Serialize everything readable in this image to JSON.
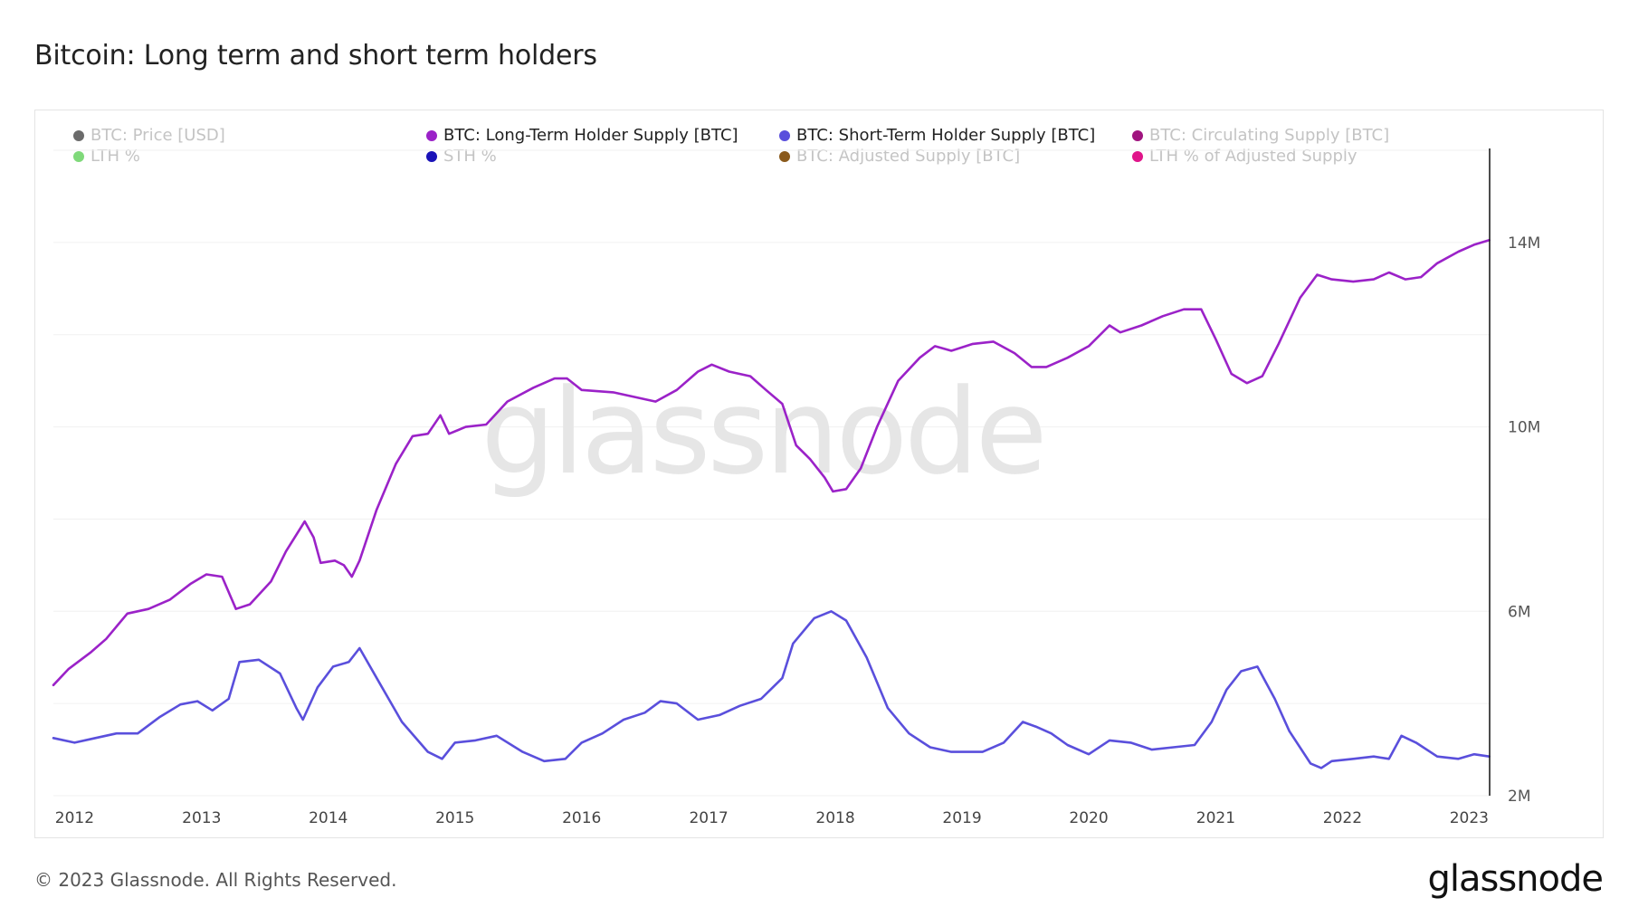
{
  "page": {
    "title": "Bitcoin: Long term and short term holders",
    "copyright": "© 2023 Glassnode. All Rights Reserved.",
    "logo_text": "glassnode",
    "watermark": "glassnode"
  },
  "legend": [
    {
      "label": "BTC: Price [USD]",
      "color": "#6b6b6b",
      "active": false
    },
    {
      "label": "BTC: Long-Term Holder Supply [BTC]",
      "color": "#9b22c8",
      "active": true
    },
    {
      "label": "BTC: Short-Term Holder Supply [BTC]",
      "color": "#5a4fdc",
      "active": true
    },
    {
      "label": "BTC: Circulating Supply [BTC]",
      "color": "#a0147f",
      "active": false
    },
    {
      "label": "LTH %",
      "color": "#7fd97a",
      "active": false
    },
    {
      "label": "STH %",
      "color": "#1a12b8",
      "active": false
    },
    {
      "label": "BTC: Adjusted Supply [BTC]",
      "color": "#8a5a1c",
      "active": false
    },
    {
      "label": "LTH % of Adjusted Supply",
      "color": "#e0158a",
      "active": false
    }
  ],
  "chart_data": {
    "type": "line",
    "title": "Bitcoin: Long term and short term holders",
    "x_range": [
      "2011-11-01",
      "2023-03-01"
    ],
    "x_ticks": [
      "2012",
      "2013",
      "2014",
      "2015",
      "2016",
      "2017",
      "2018",
      "2019",
      "2020",
      "2021",
      "2022",
      "2023"
    ],
    "y_axis_position": "right",
    "y_ticks": [
      "2M",
      "6M",
      "10M",
      "14M"
    ],
    "y_tick_values": [
      2000000,
      6000000,
      10000000,
      14000000
    ],
    "ylim": [
      2000000,
      16000000
    ],
    "grid": "horizontal",
    "legend_position": "top",
    "series": [
      {
        "name": "BTC: Long-Term Holder Supply [BTC]",
        "color": "#9b22c8",
        "points": [
          [
            "2011-11-01",
            4400000
          ],
          [
            "2011-12-15",
            4750000
          ],
          [
            "2012-02-15",
            5100000
          ],
          [
            "2012-04-01",
            5400000
          ],
          [
            "2012-06-01",
            5950000
          ],
          [
            "2012-08-01",
            6050000
          ],
          [
            "2012-10-01",
            6250000
          ],
          [
            "2012-12-01",
            6600000
          ],
          [
            "2013-01-15",
            6800000
          ],
          [
            "2013-03-01",
            6750000
          ],
          [
            "2013-04-10",
            6050000
          ],
          [
            "2013-05-20",
            6150000
          ],
          [
            "2013-07-20",
            6650000
          ],
          [
            "2013-09-01",
            7300000
          ],
          [
            "2013-10-25",
            7950000
          ],
          [
            "2013-11-20",
            7600000
          ],
          [
            "2013-12-10",
            7050000
          ],
          [
            "2014-01-20",
            7100000
          ],
          [
            "2014-02-15",
            7000000
          ],
          [
            "2014-03-10",
            6750000
          ],
          [
            "2014-04-01",
            7100000
          ],
          [
            "2014-05-20",
            8200000
          ],
          [
            "2014-07-15",
            9200000
          ],
          [
            "2014-09-01",
            9800000
          ],
          [
            "2014-10-15",
            9850000
          ],
          [
            "2014-11-20",
            10250000
          ],
          [
            "2014-12-15",
            9850000
          ],
          [
            "2015-02-01",
            10000000
          ],
          [
            "2015-04-01",
            10050000
          ],
          [
            "2015-06-01",
            10550000
          ],
          [
            "2015-08-15",
            10850000
          ],
          [
            "2015-10-15",
            11050000
          ],
          [
            "2015-11-20",
            11050000
          ],
          [
            "2016-01-01",
            10800000
          ],
          [
            "2016-04-01",
            10750000
          ],
          [
            "2016-06-01",
            10650000
          ],
          [
            "2016-08-01",
            10550000
          ],
          [
            "2016-10-01",
            10800000
          ],
          [
            "2016-12-01",
            11200000
          ],
          [
            "2017-01-10",
            11350000
          ],
          [
            "2017-03-01",
            11200000
          ],
          [
            "2017-05-01",
            11100000
          ],
          [
            "2017-06-15",
            10800000
          ],
          [
            "2017-08-01",
            10500000
          ],
          [
            "2017-09-10",
            9600000
          ],
          [
            "2017-10-20",
            9300000
          ],
          [
            "2017-12-01",
            8900000
          ],
          [
            "2017-12-25",
            8600000
          ],
          [
            "2018-02-01",
            8650000
          ],
          [
            "2018-03-15",
            9100000
          ],
          [
            "2018-05-01",
            10000000
          ],
          [
            "2018-07-01",
            11000000
          ],
          [
            "2018-09-01",
            11500000
          ],
          [
            "2018-10-15",
            11750000
          ],
          [
            "2018-12-01",
            11650000
          ],
          [
            "2019-02-01",
            11800000
          ],
          [
            "2019-04-01",
            11850000
          ],
          [
            "2019-06-01",
            11600000
          ],
          [
            "2019-07-20",
            11300000
          ],
          [
            "2019-09-01",
            11300000
          ],
          [
            "2019-11-01",
            11500000
          ],
          [
            "2020-01-01",
            11750000
          ],
          [
            "2020-03-01",
            12200000
          ],
          [
            "2020-04-01",
            12050000
          ],
          [
            "2020-06-01",
            12200000
          ],
          [
            "2020-08-01",
            12400000
          ],
          [
            "2020-10-01",
            12550000
          ],
          [
            "2020-11-20",
            12550000
          ],
          [
            "2021-01-01",
            11900000
          ],
          [
            "2021-02-15",
            11150000
          ],
          [
            "2021-04-01",
            10950000
          ],
          [
            "2021-05-15",
            11100000
          ],
          [
            "2021-07-01",
            11800000
          ],
          [
            "2021-09-01",
            12800000
          ],
          [
            "2021-10-20",
            13300000
          ],
          [
            "2021-12-01",
            13200000
          ],
          [
            "2022-02-01",
            13150000
          ],
          [
            "2022-04-01",
            13200000
          ],
          [
            "2022-05-15",
            13350000
          ],
          [
            "2022-07-01",
            13200000
          ],
          [
            "2022-08-15",
            13250000
          ],
          [
            "2022-10-01",
            13550000
          ],
          [
            "2022-12-01",
            13800000
          ],
          [
            "2023-01-15",
            13950000
          ],
          [
            "2023-02-28",
            14050000
          ]
        ]
      },
      {
        "name": "BTC: Short-Term Holder Supply [BTC]",
        "color": "#5a4fdc",
        "points": [
          [
            "2011-11-01",
            3250000
          ],
          [
            "2012-01-01",
            3150000
          ],
          [
            "2012-03-01",
            3250000
          ],
          [
            "2012-05-01",
            3350000
          ],
          [
            "2012-07-01",
            3350000
          ],
          [
            "2012-09-01",
            3700000
          ],
          [
            "2012-11-01",
            3980000
          ],
          [
            "2012-12-20",
            4050000
          ],
          [
            "2013-02-01",
            3850000
          ],
          [
            "2013-03-20",
            4100000
          ],
          [
            "2013-04-20",
            4900000
          ],
          [
            "2013-06-15",
            4950000
          ],
          [
            "2013-08-15",
            4650000
          ],
          [
            "2013-10-01",
            3900000
          ],
          [
            "2013-10-20",
            3650000
          ],
          [
            "2013-12-01",
            4350000
          ],
          [
            "2014-01-15",
            4800000
          ],
          [
            "2014-03-01",
            4900000
          ],
          [
            "2014-04-01",
            5200000
          ],
          [
            "2014-06-01",
            4400000
          ],
          [
            "2014-08-01",
            3600000
          ],
          [
            "2014-10-15",
            2950000
          ],
          [
            "2014-11-25",
            2800000
          ],
          [
            "2015-01-01",
            3150000
          ],
          [
            "2015-03-01",
            3200000
          ],
          [
            "2015-05-01",
            3300000
          ],
          [
            "2015-07-15",
            2950000
          ],
          [
            "2015-09-15",
            2750000
          ],
          [
            "2015-11-15",
            2800000
          ],
          [
            "2016-01-01",
            3150000
          ],
          [
            "2016-03-01",
            3350000
          ],
          [
            "2016-05-01",
            3650000
          ],
          [
            "2016-07-01",
            3800000
          ],
          [
            "2016-08-15",
            4050000
          ],
          [
            "2016-10-01",
            4000000
          ],
          [
            "2016-12-01",
            3650000
          ],
          [
            "2017-02-01",
            3750000
          ],
          [
            "2017-04-01",
            3950000
          ],
          [
            "2017-06-01",
            4100000
          ],
          [
            "2017-08-01",
            4550000
          ],
          [
            "2017-09-01",
            5300000
          ],
          [
            "2017-11-01",
            5850000
          ],
          [
            "2017-12-20",
            6000000
          ],
          [
            "2018-02-01",
            5800000
          ],
          [
            "2018-04-01",
            5000000
          ],
          [
            "2018-06-01",
            3900000
          ],
          [
            "2018-08-01",
            3350000
          ],
          [
            "2018-10-01",
            3050000
          ],
          [
            "2018-12-01",
            2950000
          ],
          [
            "2019-03-01",
            2950000
          ],
          [
            "2019-05-01",
            3150000
          ],
          [
            "2019-06-25",
            3600000
          ],
          [
            "2019-08-01",
            3500000
          ],
          [
            "2019-09-15",
            3350000
          ],
          [
            "2019-11-01",
            3100000
          ],
          [
            "2020-01-01",
            2900000
          ],
          [
            "2020-03-01",
            3200000
          ],
          [
            "2020-05-01",
            3150000
          ],
          [
            "2020-07-01",
            3000000
          ],
          [
            "2020-09-01",
            3050000
          ],
          [
            "2020-11-01",
            3100000
          ],
          [
            "2020-12-20",
            3600000
          ],
          [
            "2021-02-01",
            4300000
          ],
          [
            "2021-03-15",
            4700000
          ],
          [
            "2021-05-01",
            4800000
          ],
          [
            "2021-06-20",
            4100000
          ],
          [
            "2021-08-01",
            3400000
          ],
          [
            "2021-10-01",
            2700000
          ],
          [
            "2021-11-01",
            2600000
          ],
          [
            "2021-12-01",
            2750000
          ],
          [
            "2022-02-01",
            2800000
          ],
          [
            "2022-04-01",
            2850000
          ],
          [
            "2022-05-15",
            2800000
          ],
          [
            "2022-06-20",
            3300000
          ],
          [
            "2022-08-01",
            3150000
          ],
          [
            "2022-10-01",
            2850000
          ],
          [
            "2022-12-01",
            2800000
          ],
          [
            "2023-01-15",
            2900000
          ],
          [
            "2023-02-28",
            2850000
          ]
        ]
      }
    ]
  }
}
